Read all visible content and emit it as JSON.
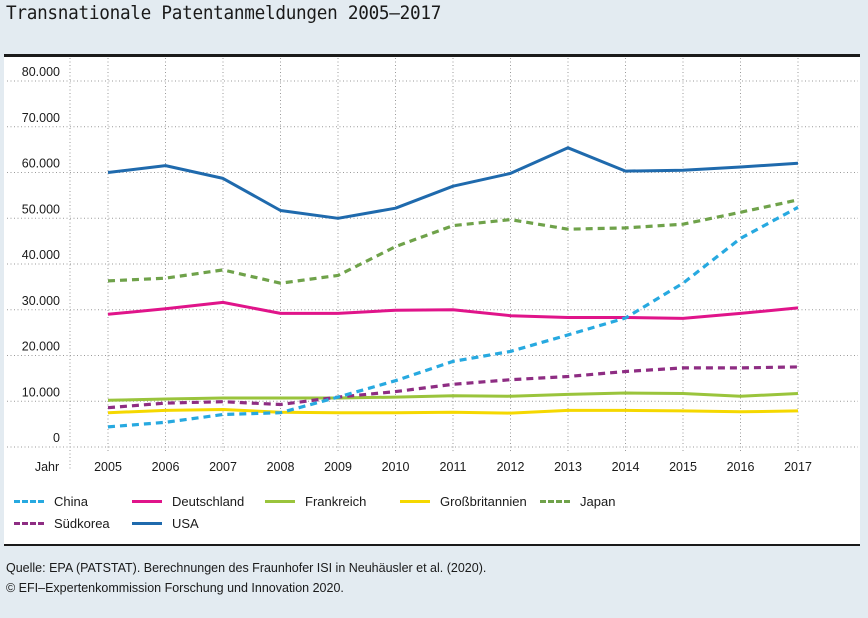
{
  "title": "Transnationale Patentanmeldungen 2005–2017",
  "chart_data": {
    "type": "line",
    "title": "Transnationale Patentanmeldungen 2005–2017",
    "xlabel": "Jahr",
    "ylabel": "",
    "x": [
      2005,
      2006,
      2007,
      2008,
      2009,
      2010,
      2011,
      2012,
      2013,
      2014,
      2015,
      2016,
      2017
    ],
    "x_tick_labels": [
      "2005",
      "2006",
      "2007",
      "2008",
      "2009",
      "2010",
      "2011",
      "2012",
      "2013",
      "2014",
      "2015",
      "2016",
      "2017"
    ],
    "y_tick_labels": [
      "0",
      "10.000",
      "20.000",
      "30.000",
      "40.000",
      "50.000",
      "60.000",
      "70.000",
      "80.000"
    ],
    "y_ticks": [
      0,
      10000,
      20000,
      30000,
      40000,
      50000,
      60000,
      70000,
      80000
    ],
    "ylim": [
      0,
      80000
    ],
    "grid": true,
    "legend_position": "bottom",
    "series": [
      {
        "name": "China",
        "color": "#27a9e0",
        "style": "dashed",
        "values": [
          4400,
          5400,
          7100,
          7500,
          10900,
          14500,
          18700,
          20900,
          24500,
          28200,
          35800,
          45600,
          52400
        ]
      },
      {
        "name": "Deutschland",
        "color": "#e0148a",
        "style": "solid",
        "values": [
          29000,
          30200,
          31600,
          29200,
          29200,
          29900,
          30000,
          28700,
          28300,
          28300,
          28100,
          29200,
          30400
        ]
      },
      {
        "name": "Frankreich",
        "color": "#9ac43c",
        "style": "solid",
        "values": [
          10200,
          10500,
          10700,
          10700,
          10700,
          10900,
          11200,
          11100,
          11500,
          11800,
          11700,
          11100,
          11700
        ]
      },
      {
        "name": "Großbritannien",
        "color": "#f5d800",
        "style": "solid",
        "values": [
          7500,
          8000,
          8200,
          7600,
          7500,
          7500,
          7600,
          7400,
          8000,
          8000,
          7900,
          7700,
          7900
        ]
      },
      {
        "name": "Japan",
        "color": "#6fa24a",
        "style": "dashed",
        "values": [
          36300,
          36900,
          38700,
          35800,
          37500,
          43800,
          48400,
          49700,
          47600,
          47900,
          48700,
          51300,
          54000
        ]
      },
      {
        "name": "Südkorea",
        "color": "#8e2d83",
        "style": "dashed",
        "values": [
          8600,
          9600,
          9900,
          9300,
          10900,
          12100,
          13700,
          14700,
          15400,
          16500,
          17300,
          17300,
          17500
        ]
      },
      {
        "name": "USA",
        "color": "#1f6aad",
        "style": "solid",
        "values": [
          60000,
          61500,
          58700,
          51700,
          50000,
          52200,
          57000,
          59800,
          65400,
          60300,
          60500,
          61200,
          62000
        ]
      }
    ]
  },
  "footer": {
    "source": "Quelle: EPA (PATSTAT). Berechnungen des Fraunhofer ISI in Neuhäusler et al. (2020).",
    "copyright": "© EFI–Expertenkommission Forschung und Innovation 2020."
  }
}
